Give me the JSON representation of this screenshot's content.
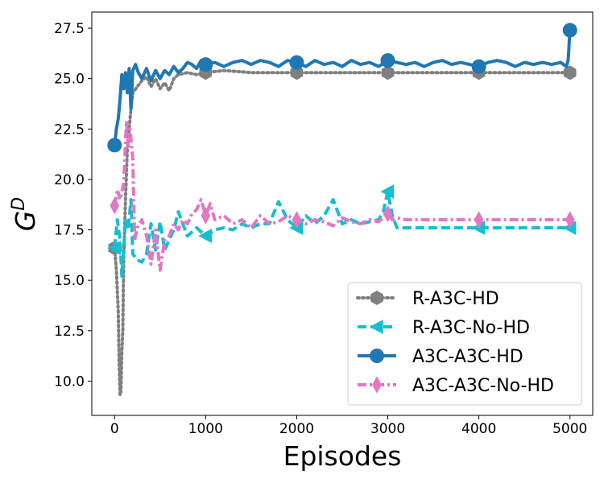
{
  "chart_data": {
    "type": "line",
    "xlabel": "Episodes",
    "ylabel": "G^D",
    "xlim": [
      -250,
      5250
    ],
    "ylim": [
      8.3,
      28.3
    ],
    "xticks": [
      0,
      1000,
      2000,
      3000,
      4000,
      5000
    ],
    "yticks": [
      10.0,
      12.5,
      15.0,
      17.5,
      20.0,
      22.5,
      25.0,
      27.5
    ],
    "xtick_labels": [
      "0",
      "1000",
      "2000",
      "3000",
      "4000",
      "5000"
    ],
    "ytick_labels": [
      "10.0",
      "12.5",
      "15.0",
      "17.5",
      "20.0",
      "22.5",
      "25.0",
      "27.5"
    ],
    "grid": false,
    "legend_position": "lower-right",
    "series": [
      {
        "name": "R-A3C-HD",
        "color": "#7f7f7f",
        "style": "dotted",
        "marker": "hexagon",
        "x": [
          0,
          20,
          40,
          50,
          60,
          70,
          80,
          90,
          100,
          120,
          140,
          160,
          180,
          200,
          250,
          300,
          350,
          400,
          450,
          500,
          550,
          600,
          650,
          700,
          800,
          900,
          1000,
          1200,
          1500,
          2000,
          2500,
          3000,
          3500,
          4000,
          4500,
          5000
        ],
        "values": [
          16.6,
          15.5,
          13.5,
          11.0,
          9.3,
          9.5,
          11.5,
          12.5,
          16.0,
          19.0,
          21.5,
          22.5,
          23.5,
          24.3,
          24.6,
          24.9,
          25.1,
          24.6,
          25.0,
          24.5,
          24.8,
          24.4,
          25.0,
          25.2,
          25.3,
          25.2,
          25.3,
          25.4,
          25.3,
          25.3,
          25.3,
          25.3,
          25.3,
          25.3,
          25.3,
          25.3
        ]
      },
      {
        "name": "R-A3C-No-HD",
        "color": "#17becf",
        "style": "dashed",
        "marker": "triangle-left",
        "x": [
          0,
          30,
          60,
          80,
          100,
          120,
          150,
          180,
          200,
          250,
          300,
          350,
          400,
          450,
          500,
          550,
          600,
          650,
          700,
          800,
          900,
          1000,
          1100,
          1200,
          1300,
          1400,
          1500,
          1600,
          1700,
          1800,
          1900,
          2000,
          2100,
          2200,
          2300,
          2400,
          2500,
          2600,
          2700,
          2800,
          2900,
          2950,
          3000,
          3050,
          3100,
          3200,
          4000,
          5000
        ],
        "values": [
          16.6,
          18.0,
          17.0,
          15.2,
          16.5,
          18.0,
          17.5,
          19.0,
          16.3,
          16.0,
          15.9,
          16.3,
          17.8,
          16.5,
          17.9,
          16.5,
          17.0,
          17.5,
          18.4,
          17.2,
          17.6,
          17.2,
          17.5,
          17.6,
          17.5,
          17.8,
          17.6,
          17.8,
          17.8,
          18.9,
          18.0,
          17.6,
          18.2,
          17.8,
          18.2,
          19.0,
          17.8,
          18.0,
          17.8,
          17.9,
          18.0,
          18.4,
          19.4,
          18.2,
          17.6,
          17.6,
          17.6,
          17.6
        ]
      },
      {
        "name": "A3C-A3C-HD",
        "color": "#1f77b4",
        "style": "solid",
        "marker": "circle",
        "x": [
          0,
          20,
          40,
          60,
          80,
          100,
          120,
          140,
          160,
          180,
          200,
          230,
          260,
          300,
          350,
          400,
          450,
          500,
          550,
          600,
          650,
          700,
          750,
          800,
          850,
          900,
          950,
          1000,
          1100,
          1200,
          1300,
          1400,
          1500,
          1600,
          1700,
          1800,
          1900,
          2000,
          2100,
          2200,
          2300,
          2400,
          2500,
          2600,
          2700,
          2800,
          2900,
          3000,
          3100,
          3200,
          3300,
          3400,
          3500,
          3600,
          3700,
          3800,
          3900,
          4000,
          4100,
          4200,
          4300,
          4400,
          4500,
          4600,
          4700,
          4800,
          4900,
          4960,
          4980,
          5000
        ],
        "values": [
          21.7,
          22.5,
          23.0,
          24.0,
          25.2,
          24.5,
          25.3,
          24.3,
          25.5,
          23.5,
          25.4,
          25.7,
          25.3,
          25.0,
          25.5,
          24.9,
          25.4,
          25.0,
          25.4,
          25.2,
          25.6,
          25.3,
          25.5,
          25.8,
          25.7,
          25.5,
          25.9,
          25.7,
          25.8,
          25.6,
          25.8,
          25.9,
          25.7,
          25.9,
          25.8,
          25.6,
          25.9,
          25.8,
          25.6,
          25.9,
          25.7,
          25.8,
          25.6,
          25.9,
          25.7,
          25.8,
          25.6,
          25.9,
          25.8,
          25.7,
          25.8,
          25.6,
          25.8,
          25.9,
          25.7,
          25.8,
          25.7,
          25.6,
          25.8,
          25.9,
          25.8,
          25.6,
          25.8,
          25.7,
          25.8,
          25.7,
          25.8,
          25.6,
          25.9,
          27.4
        ]
      },
      {
        "name": "A3C-A3C-No-HD",
        "color": "#e377c2",
        "style": "dashdot",
        "marker": "thin-diamond",
        "x": [
          0,
          30,
          60,
          100,
          130,
          150,
          170,
          200,
          220,
          250,
          300,
          350,
          400,
          450,
          500,
          550,
          600,
          650,
          700,
          750,
          800,
          850,
          900,
          950,
          1000,
          1050,
          1100,
          1200,
          1300,
          1400,
          1500,
          1600,
          1700,
          1800,
          1900,
          2000,
          2100,
          2200,
          2300,
          2400,
          2500,
          2600,
          2700,
          2800,
          2900,
          3000,
          3050,
          3100,
          3200,
          4000,
          5000
        ],
        "values": [
          18.7,
          19.5,
          19.0,
          19.8,
          22.9,
          21.5,
          22.5,
          21.0,
          17.0,
          17.6,
          18.0,
          17.2,
          15.8,
          17.5,
          15.5,
          17.0,
          17.2,
          17.8,
          17.5,
          18.0,
          17.8,
          18.3,
          18.5,
          19.0,
          18.2,
          18.8,
          18.0,
          18.2,
          17.8,
          18.0,
          17.6,
          18.2,
          17.8,
          17.9,
          18.2,
          18.0,
          17.8,
          18.0,
          17.9,
          17.7,
          18.1,
          17.9,
          17.8,
          18.0,
          17.9,
          18.3,
          18.0,
          18.1,
          18.0,
          18.0,
          18.0
        ]
      }
    ],
    "marker_x": [
      0,
      1000,
      2000,
      3000,
      4000,
      5000
    ]
  }
}
